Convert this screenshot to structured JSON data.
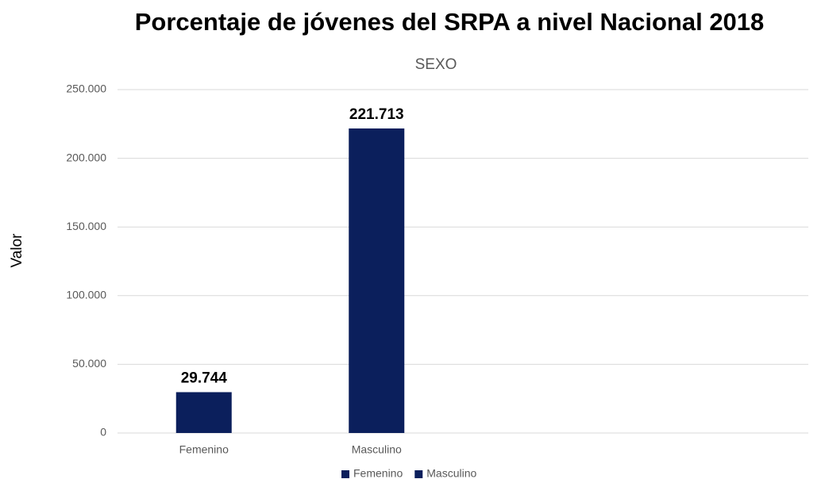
{
  "chart_data": {
    "type": "bar",
    "title": "Porcentaje de jóvenes del SRPA a nivel Nacional 2018",
    "subtitle": "SEXO",
    "y_label": "Valor",
    "categories": [
      "Femenino",
      "Masculino"
    ],
    "values": [
      29744,
      221713
    ],
    "value_labels": [
      "29.744",
      "221.713"
    ],
    "color": "#0b1f5c",
    "ylim": [
      0,
      250000
    ],
    "yticks": [
      0,
      {
        "value": 50000,
        "label": "50.000"
      },
      {
        "value": 100000,
        "label": "100.000"
      },
      {
        "value": 150000,
        "label": "150.000"
      },
      {
        "value": 200000,
        "label": "200.000"
      },
      {
        "value": 250000,
        "label": "250.000"
      }
    ],
    "grid": true,
    "legend": "bottom"
  }
}
